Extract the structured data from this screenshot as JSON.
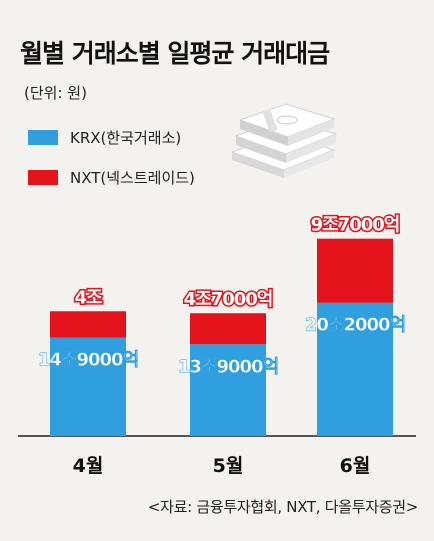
{
  "title": "월별 거래소별 일평균 거래대금",
  "unit_label": "(단위: 원)",
  "source": "<자료: 금융투자협회, NXT, 다올투자증권>",
  "colors": {
    "krx": "#2f9fe0",
    "nxt": "#e3121b",
    "background": "#f4f2ee"
  },
  "icon": "money-stack-icon",
  "chart_data": {
    "type": "bar",
    "stacked": true,
    "categories": [
      "4월",
      "5월",
      "6월"
    ],
    "unit": "원",
    "series": [
      {
        "name": "KRX(한국거래소)",
        "values": [
          14.9,
          13.9,
          20.2
        ],
        "labels": [
          "14조9000억",
          "13조9000억",
          "20조2000억"
        ]
      },
      {
        "name": "NXT(넥스트레이드)",
        "values": [
          4.0,
          4.7,
          9.7
        ],
        "labels": [
          "4조",
          "4조7000억",
          "9조7000억"
        ]
      }
    ],
    "legend": "top-left",
    "grid": false
  }
}
